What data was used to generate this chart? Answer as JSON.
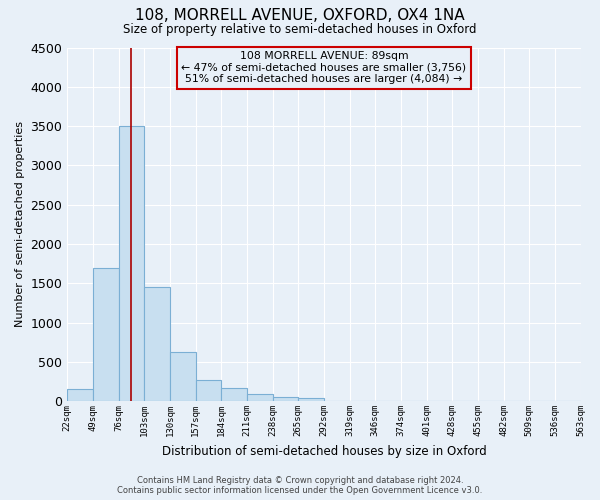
{
  "title": "108, MORRELL AVENUE, OXFORD, OX4 1NA",
  "subtitle": "Size of property relative to semi-detached houses in Oxford",
  "xlabel": "Distribution of semi-detached houses by size in Oxford",
  "ylabel": "Number of semi-detached properties",
  "bar_values": [
    150,
    1700,
    3500,
    1450,
    620,
    270,
    165,
    90,
    50,
    35,
    0,
    0,
    0,
    0,
    0,
    0,
    0,
    0,
    0,
    0
  ],
  "bar_labels": [
    "22sqm",
    "49sqm",
    "76sqm",
    "103sqm",
    "130sqm",
    "157sqm",
    "184sqm",
    "211sqm",
    "238sqm",
    "265sqm",
    "292sqm",
    "319sqm",
    "346sqm",
    "374sqm",
    "401sqm",
    "428sqm",
    "455sqm",
    "482sqm",
    "509sqm",
    "536sqm",
    "563sqm"
  ],
  "bar_color": "#c8dff0",
  "bar_edge_color": "#7bafd4",
  "vline_color": "#aa0000",
  "annotation_title": "108 MORRELL AVENUE: 89sqm",
  "annotation_line1": "← 47% of semi-detached houses are smaller (3,756)",
  "annotation_line2": "51% of semi-detached houses are larger (4,084) →",
  "ylim": [
    0,
    4500
  ],
  "box_edge_color": "#cc0000",
  "background_color": "#e8f0f8",
  "plot_bg_color": "#e8f0f8",
  "grid_color": "#ffffff",
  "footer1": "Contains HM Land Registry data © Crown copyright and database right 2024.",
  "footer2": "Contains public sector information licensed under the Open Government Licence v3.0."
}
